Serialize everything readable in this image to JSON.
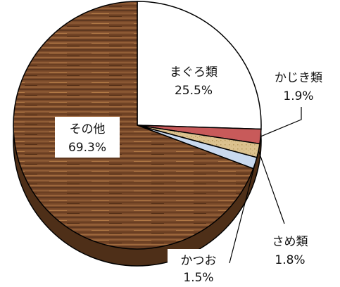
{
  "chart_data": {
    "type": "pie",
    "title": "",
    "slices": [
      {
        "name": "まぐろ類",
        "value": 25.5,
        "label": "25.5%",
        "color": "#ffffff"
      },
      {
        "name": "かじき類",
        "value": 1.9,
        "label": "1.9%",
        "color": "#c85a5a"
      },
      {
        "name": "さめ類",
        "value": 1.8,
        "label": "1.8%",
        "color": "#dcc28f"
      },
      {
        "name": "かつお",
        "value": 1.5,
        "label": "1.5%",
        "color": "#c9d9ef"
      },
      {
        "name": "その他",
        "value": 69.3,
        "label": "69.3%",
        "color": "#7a4a2a"
      }
    ],
    "start": "12 o'clock",
    "direction": "clockwise",
    "style": "3d-tilted",
    "legend": "none"
  }
}
